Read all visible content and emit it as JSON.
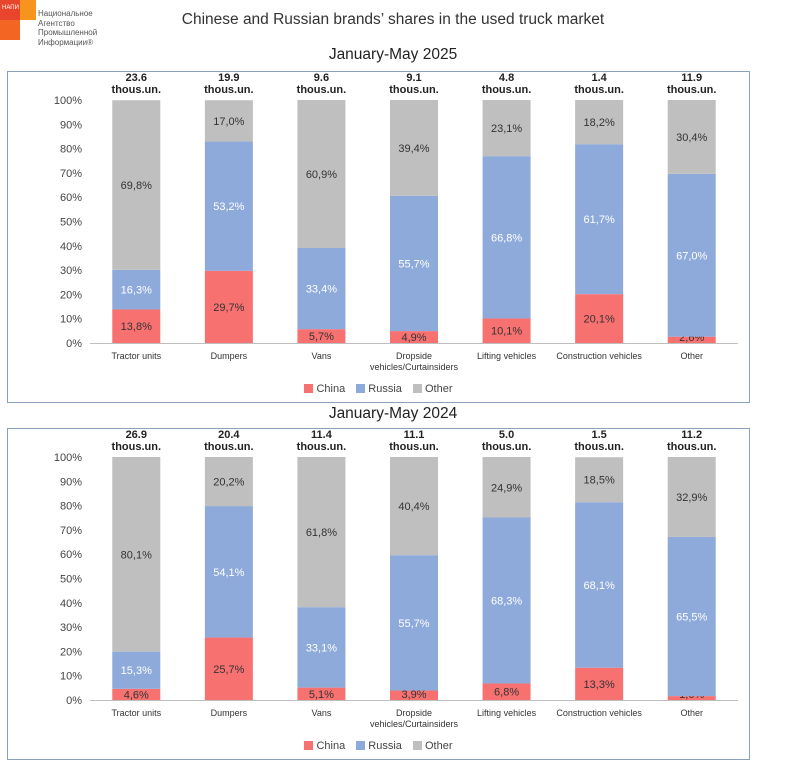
{
  "logo": {
    "abbr": "НАПИ",
    "lines": [
      "Национальное",
      "Агентство",
      "Промышленной",
      "Информации®"
    ]
  },
  "title": "Chinese and Russian brands’ shares in the used truck market",
  "legend": [
    {
      "name": "China",
      "color": "#f87171"
    },
    {
      "name": "Russia",
      "color": "#8eaadb"
    },
    {
      "name": "Other",
      "color": "#bfbfbf"
    }
  ],
  "chart_data": [
    {
      "type": "bar",
      "stacked": true,
      "title": "January-May 2025",
      "categories": [
        "Tractor units",
        "Dumpers",
        "Vans",
        "Dropside vehicles/Curtainsiders",
        "Lifting vehicles",
        "Construction vehicles",
        "Other"
      ],
      "totals": [
        "23.6 thous.un.",
        "19.9 thous.un.",
        "9.6 thous.un.",
        "9.1 thous.un.",
        "4.8 thous.un.",
        "1.4 thous.un.",
        "11.9 thous.un."
      ],
      "series": [
        {
          "name": "China",
          "values": [
            13.8,
            29.7,
            5.7,
            4.9,
            10.1,
            20.1,
            2.6
          ],
          "labels": [
            "13,8%",
            "29,7%",
            "5,7%",
            "4,9%",
            "10,1%",
            "20,1%",
            "2,6%"
          ]
        },
        {
          "name": "Russia",
          "values": [
            16.3,
            53.2,
            33.4,
            55.7,
            66.8,
            61.7,
            67.0
          ],
          "labels": [
            "16,3%",
            "53,2%",
            "33,4%",
            "55,7%",
            "66,8%",
            "61,7%",
            "67,0%"
          ]
        },
        {
          "name": "Other",
          "values": [
            69.8,
            17.0,
            60.9,
            39.4,
            23.1,
            18.2,
            30.4
          ],
          "labels": [
            "69,8%",
            "17,0%",
            "60,9%",
            "39,4%",
            "23,1%",
            "18,2%",
            "30,4%"
          ]
        }
      ],
      "yticks": [
        "0%",
        "10%",
        "20%",
        "30%",
        "40%",
        "50%",
        "60%",
        "70%",
        "80%",
        "90%",
        "100%"
      ],
      "ylim": [
        0,
        100
      ],
      "legend_position": "bottom"
    },
    {
      "type": "bar",
      "stacked": true,
      "title": "January-May 2024",
      "categories": [
        "Tractor units",
        "Dumpers",
        "Vans",
        "Dropside vehicles/Curtainsiders",
        "Lifting vehicles",
        "Construction vehicles",
        "Other"
      ],
      "totals": [
        "26.9 thous.un.",
        "20.4 thous.un.",
        "11.4 thous.un.",
        "11.1 thous.un.",
        "5.0 thous.un.",
        "1.5 thous.un.",
        "11.2 thous.un."
      ],
      "series": [
        {
          "name": "China",
          "values": [
            4.6,
            25.7,
            5.1,
            3.9,
            6.8,
            13.3,
            1.6
          ],
          "labels": [
            "4,6%",
            "25,7%",
            "5,1%",
            "3,9%",
            "6,8%",
            "13,3%",
            "1,6%"
          ]
        },
        {
          "name": "Russia",
          "values": [
            15.3,
            54.1,
            33.1,
            55.7,
            68.3,
            68.1,
            65.5
          ],
          "labels": [
            "15,3%",
            "54,1%",
            "33,1%",
            "55,7%",
            "68,3%",
            "68,1%",
            "65,5%"
          ]
        },
        {
          "name": "Other",
          "values": [
            80.1,
            20.2,
            61.8,
            40.4,
            24.9,
            18.5,
            32.9
          ],
          "labels": [
            "80,1%",
            "20,2%",
            "61,8%",
            "40,4%",
            "24,9%",
            "18,5%",
            "32,9%"
          ]
        }
      ],
      "yticks": [
        "0%",
        "10%",
        "20%",
        "30%",
        "40%",
        "50%",
        "60%",
        "70%",
        "80%",
        "90%",
        "100%"
      ],
      "ylim": [
        0,
        100
      ],
      "legend_position": "bottom"
    }
  ]
}
